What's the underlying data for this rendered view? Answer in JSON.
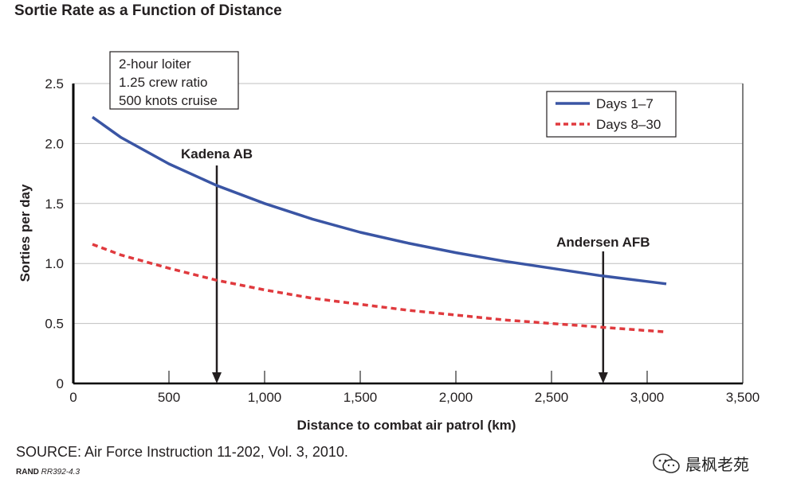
{
  "title": "Sortie Rate as a Function of Distance",
  "source": "SOURCE: Air Force Instruction 11-202, Vol. 3, 2010.",
  "rand_label": "RAND",
  "rand_id": "RR392-4.3",
  "watermark": {
    "text": "晨枫老苑",
    "icon": "wechat-icon"
  },
  "colors": {
    "days_1_7": "#3a55a4",
    "days_8_30": "#e03a3e",
    "grid": "#bfbfbf",
    "axis": "#000000"
  },
  "chart_data": {
    "type": "line",
    "xlabel": "Distance to combat air patrol (km)",
    "ylabel": "Sorties per day",
    "xlim": [
      0,
      3500
    ],
    "ylim": [
      0,
      2.5
    ],
    "x_ticks": [
      0,
      500,
      1000,
      1500,
      2000,
      2500,
      3000,
      3500
    ],
    "x_tick_labels": [
      "0",
      "500",
      "1,000",
      "1,500",
      "2,000",
      "2,500",
      "3,000",
      "3,500"
    ],
    "y_ticks": [
      0,
      0.5,
      1.0,
      1.5,
      2.0,
      2.5
    ],
    "y_tick_labels": [
      "0",
      "0.5",
      "1.0",
      "1.5",
      "2.0",
      "2.5"
    ],
    "grid": "horizontal",
    "legend_position": "top-right",
    "assumptions": [
      "2-hour loiter",
      "1.25 crew ratio",
      "500 knots cruise"
    ],
    "series": [
      {
        "name": "Days 1–7",
        "style": "solid",
        "x": [
          100,
          250,
          500,
          750,
          1000,
          1250,
          1500,
          1750,
          2000,
          2250,
          2500,
          2750,
          3000,
          3100
        ],
        "y": [
          2.22,
          2.05,
          1.83,
          1.65,
          1.5,
          1.37,
          1.26,
          1.17,
          1.09,
          1.02,
          0.96,
          0.9,
          0.85,
          0.83
        ]
      },
      {
        "name": "Days 8–30",
        "style": "dashed",
        "x": [
          100,
          250,
          500,
          750,
          1000,
          1250,
          1500,
          1750,
          2000,
          2250,
          2500,
          2750,
          3000,
          3100
        ],
        "y": [
          1.16,
          1.07,
          0.96,
          0.86,
          0.78,
          0.71,
          0.66,
          0.61,
          0.57,
          0.53,
          0.5,
          0.47,
          0.44,
          0.43
        ]
      }
    ],
    "annotations": [
      {
        "label": "Kadena AB",
        "x": 750
      },
      {
        "label": "Andersen AFB",
        "x": 2770
      }
    ]
  }
}
